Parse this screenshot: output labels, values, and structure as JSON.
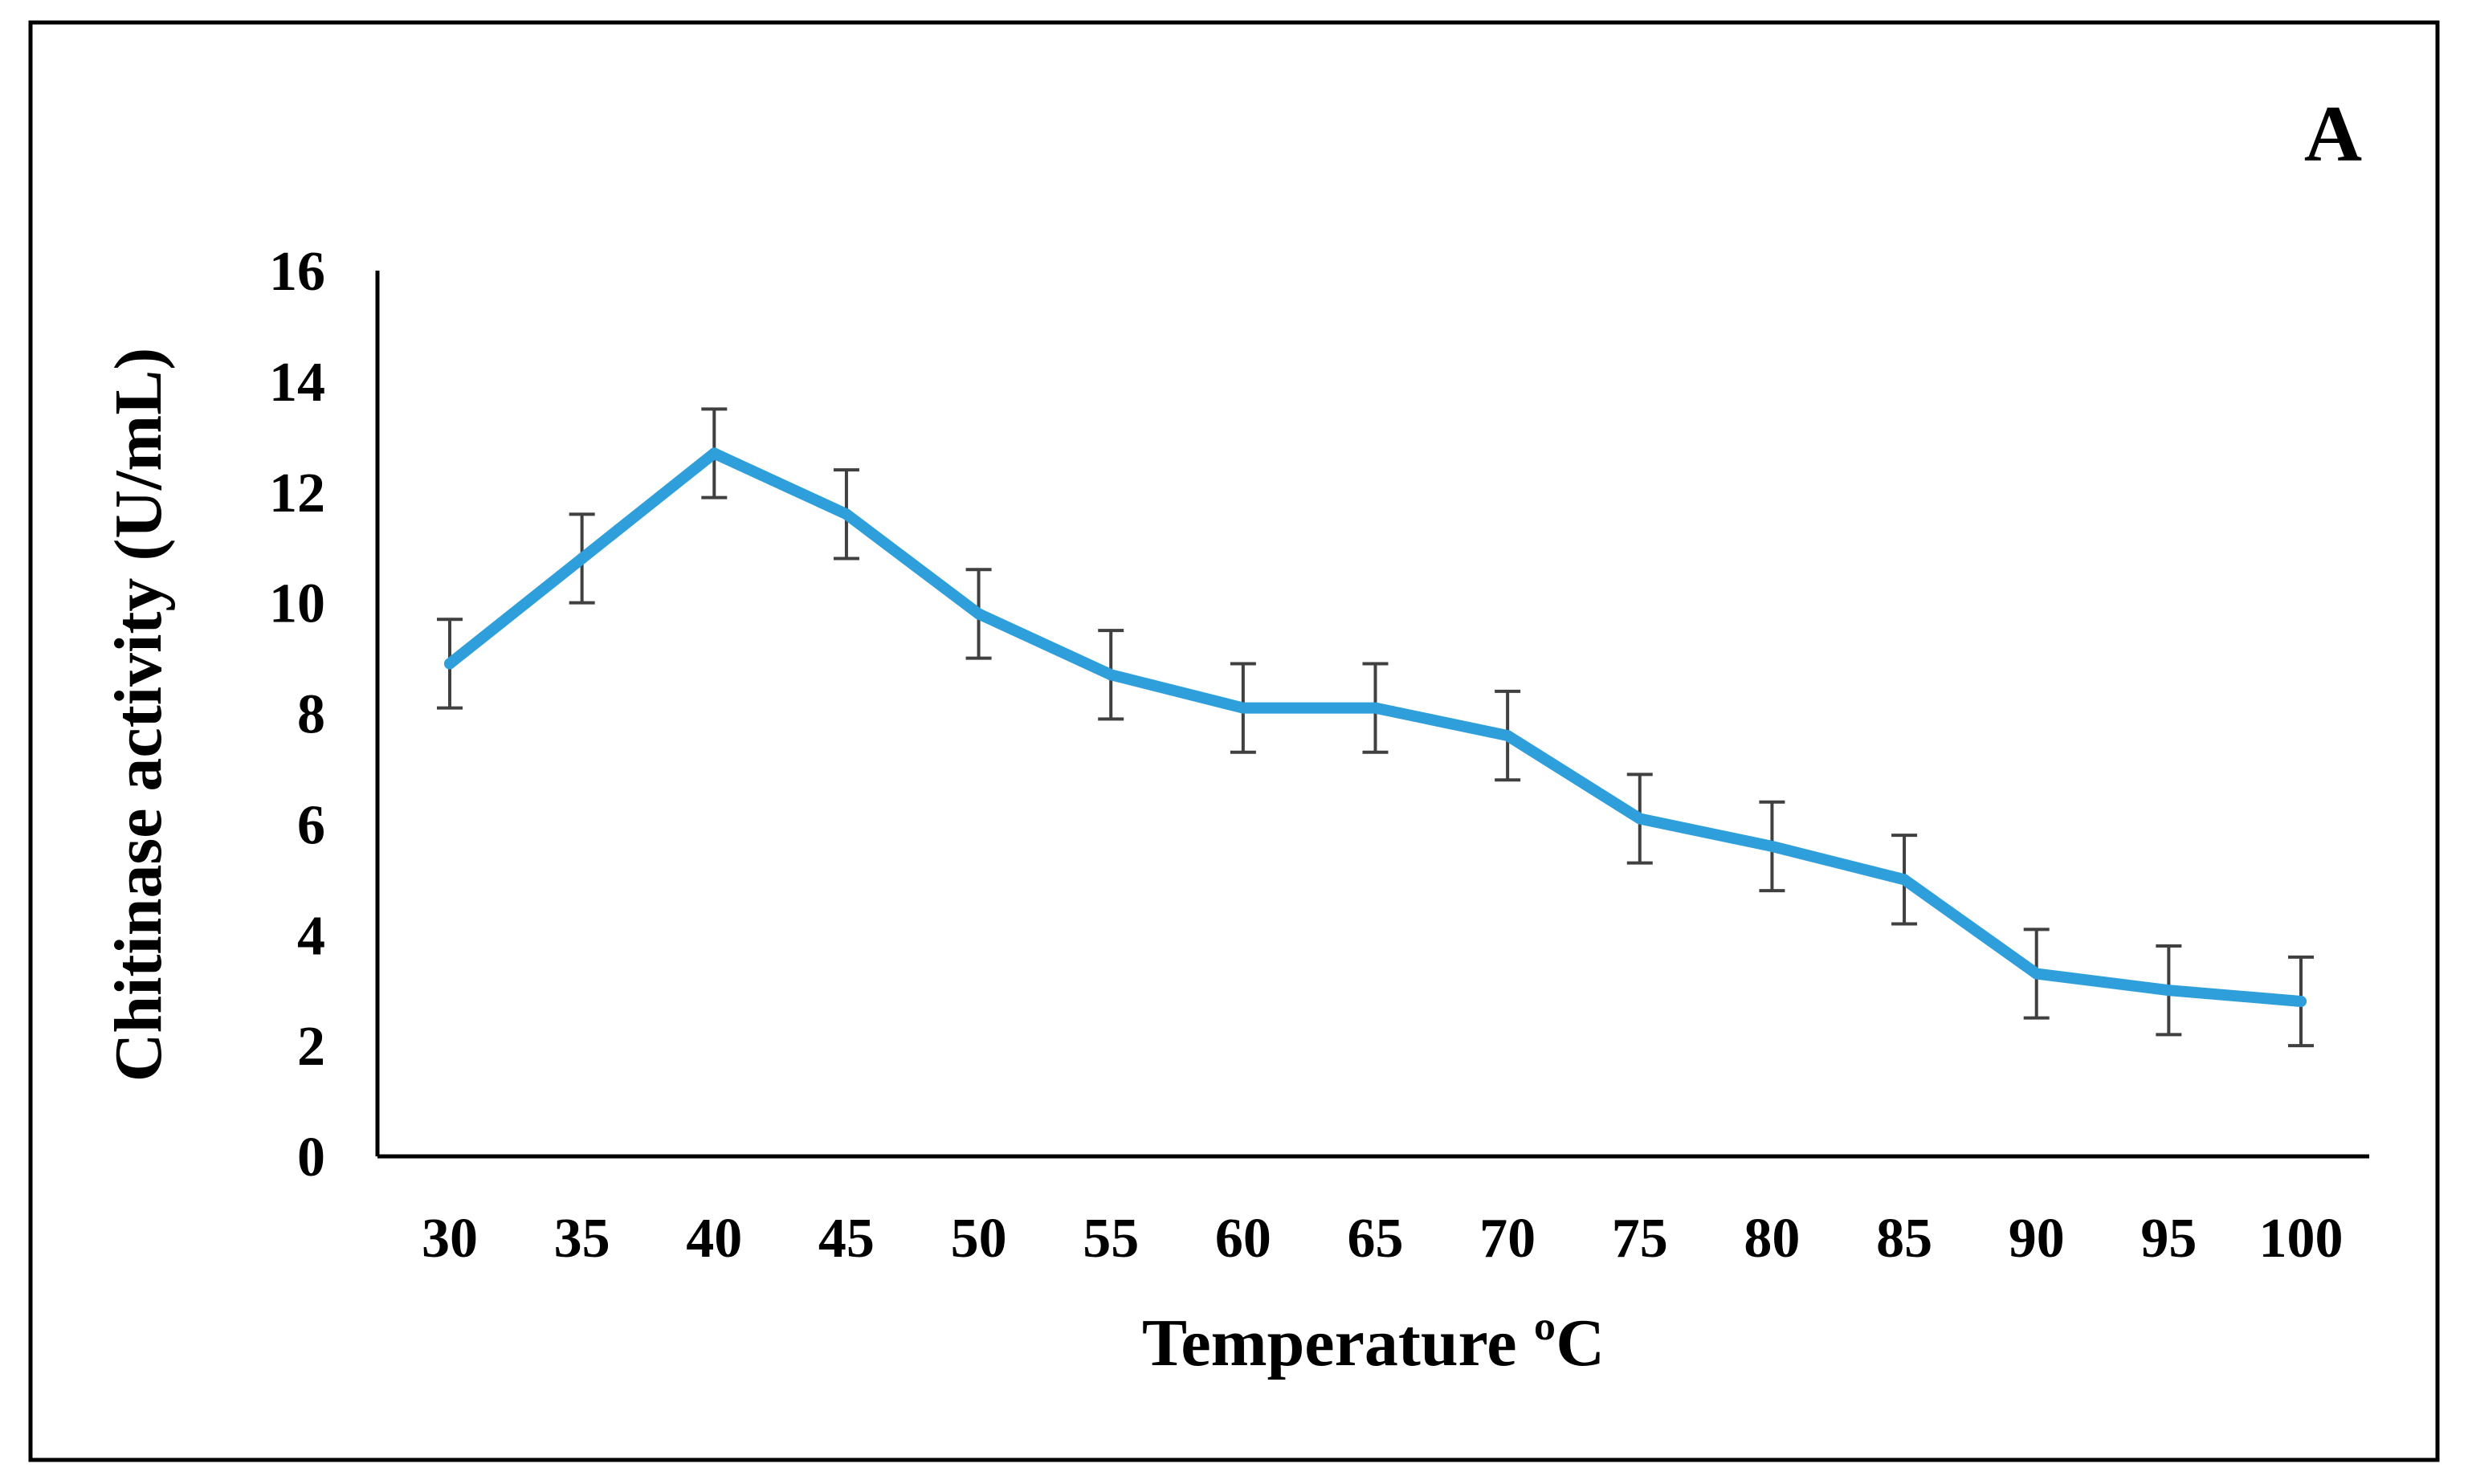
{
  "chart_data": {
    "type": "line",
    "panel_label": "A",
    "xlabel": "Temperature ºC",
    "ylabel": "Chitinase activity (U/mL)",
    "ylim": [
      0,
      16
    ],
    "yticks": [
      0,
      2,
      4,
      6,
      8,
      10,
      12,
      14,
      16
    ],
    "categories": [
      "30",
      "35",
      "40",
      "45",
      "50",
      "55",
      "60",
      "65",
      "70",
      "75",
      "80",
      "85",
      "90",
      "95",
      "100"
    ],
    "series": [
      {
        "name": "Chitinase activity",
        "color": "#2E9FDB",
        "values": [
          8.9,
          10.8,
          12.7,
          11.6,
          9.8,
          8.7,
          8.1,
          8.1,
          7.6,
          6.1,
          5.6,
          5.0,
          3.3,
          3.0,
          2.8
        ],
        "errors": [
          0.8,
          0.8,
          0.8,
          0.8,
          0.8,
          0.8,
          0.8,
          0.8,
          0.8,
          0.8,
          0.8,
          0.8,
          0.8,
          0.8,
          0.8
        ]
      }
    ],
    "grid": false,
    "legend": "none"
  }
}
